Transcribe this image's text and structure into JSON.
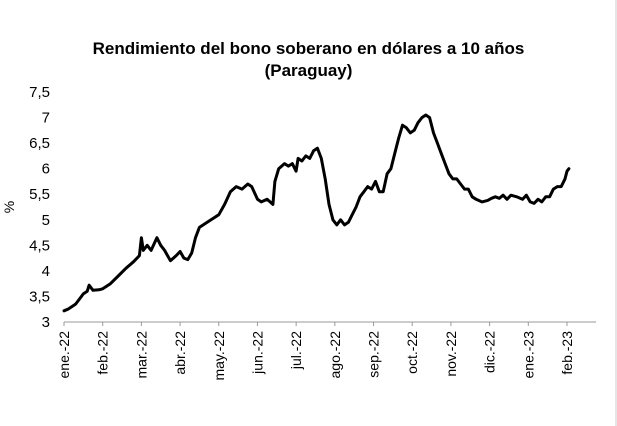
{
  "chart_data": {
    "type": "line",
    "title": "Rendimiento del bono soberano en dólares a 10 años",
    "subtitle": "(Paraguay)",
    "ylabel": "%",
    "xlabel": "",
    "ylim": [
      3,
      7.5
    ],
    "y_ticks": [
      "3",
      "3,5",
      "4",
      "4,5",
      "5",
      "5,5",
      "6",
      "6,5",
      "7",
      "7,5"
    ],
    "x_ticks": [
      "ene.-22",
      "feb.-22",
      "mar.-22",
      "abr.-22",
      "may.-22",
      "jun.-22",
      "jul.-22",
      "ago.-22",
      "sep.-22",
      "oct.-22",
      "nov.-22",
      "dic.-22",
      "ene.-23",
      "feb.-23"
    ],
    "x_range_months": [
      0,
      13.75
    ],
    "grid": false,
    "line_color": "#000000",
    "series": [
      {
        "values": [
          [
            0.0,
            3.22
          ],
          [
            0.1,
            3.25
          ],
          [
            0.2,
            3.3
          ],
          [
            0.3,
            3.35
          ],
          [
            0.4,
            3.45
          ],
          [
            0.5,
            3.55
          ],
          [
            0.6,
            3.6
          ],
          [
            0.65,
            3.72
          ],
          [
            0.75,
            3.62
          ],
          [
            0.9,
            3.63
          ],
          [
            1.0,
            3.65
          ],
          [
            1.2,
            3.75
          ],
          [
            1.4,
            3.9
          ],
          [
            1.6,
            4.05
          ],
          [
            1.8,
            4.18
          ],
          [
            1.95,
            4.3
          ],
          [
            2.0,
            4.65
          ],
          [
            2.05,
            4.4
          ],
          [
            2.15,
            4.5
          ],
          [
            2.25,
            4.4
          ],
          [
            2.4,
            4.65
          ],
          [
            2.5,
            4.5
          ],
          [
            2.6,
            4.4
          ],
          [
            2.75,
            4.2
          ],
          [
            2.9,
            4.3
          ],
          [
            3.0,
            4.38
          ],
          [
            3.1,
            4.25
          ],
          [
            3.2,
            4.22
          ],
          [
            3.3,
            4.35
          ],
          [
            3.4,
            4.65
          ],
          [
            3.5,
            4.85
          ],
          [
            3.7,
            4.95
          ],
          [
            3.9,
            5.05
          ],
          [
            4.0,
            5.1
          ],
          [
            4.15,
            5.3
          ],
          [
            4.3,
            5.55
          ],
          [
            4.45,
            5.65
          ],
          [
            4.6,
            5.6
          ],
          [
            4.75,
            5.7
          ],
          [
            4.85,
            5.65
          ],
          [
            5.0,
            5.4
          ],
          [
            5.1,
            5.35
          ],
          [
            5.25,
            5.4
          ],
          [
            5.4,
            5.3
          ],
          [
            5.45,
            5.75
          ],
          [
            5.55,
            6.0
          ],
          [
            5.7,
            6.1
          ],
          [
            5.8,
            6.05
          ],
          [
            5.9,
            6.1
          ],
          [
            6.0,
            5.95
          ],
          [
            6.05,
            6.2
          ],
          [
            6.15,
            6.15
          ],
          [
            6.25,
            6.25
          ],
          [
            6.35,
            6.2
          ],
          [
            6.45,
            6.35
          ],
          [
            6.55,
            6.4
          ],
          [
            6.65,
            6.2
          ],
          [
            6.75,
            5.8
          ],
          [
            6.85,
            5.3
          ],
          [
            6.95,
            5.0
          ],
          [
            7.05,
            4.9
          ],
          [
            7.15,
            5.0
          ],
          [
            7.25,
            4.9
          ],
          [
            7.35,
            4.95
          ],
          [
            7.45,
            5.1
          ],
          [
            7.55,
            5.25
          ],
          [
            7.65,
            5.45
          ],
          [
            7.75,
            5.55
          ],
          [
            7.85,
            5.65
          ],
          [
            7.95,
            5.6
          ],
          [
            8.05,
            5.75
          ],
          [
            8.15,
            5.55
          ],
          [
            8.25,
            5.55
          ],
          [
            8.35,
            5.9
          ],
          [
            8.45,
            6.0
          ],
          [
            8.55,
            6.3
          ],
          [
            8.65,
            6.6
          ],
          [
            8.75,
            6.85
          ],
          [
            8.85,
            6.8
          ],
          [
            8.95,
            6.7
          ],
          [
            9.05,
            6.75
          ],
          [
            9.15,
            6.9
          ],
          [
            9.25,
            7.0
          ],
          [
            9.35,
            7.05
          ],
          [
            9.45,
            7.0
          ],
          [
            9.55,
            6.7
          ],
          [
            9.65,
            6.5
          ],
          [
            9.75,
            6.3
          ],
          [
            9.85,
            6.1
          ],
          [
            9.95,
            5.9
          ],
          [
            10.05,
            5.8
          ],
          [
            10.15,
            5.8
          ],
          [
            10.25,
            5.7
          ],
          [
            10.35,
            5.6
          ],
          [
            10.45,
            5.6
          ],
          [
            10.55,
            5.45
          ],
          [
            10.65,
            5.4
          ],
          [
            10.8,
            5.35
          ],
          [
            10.95,
            5.38
          ],
          [
            11.05,
            5.42
          ],
          [
            11.15,
            5.45
          ],
          [
            11.25,
            5.42
          ],
          [
            11.35,
            5.48
          ],
          [
            11.45,
            5.4
          ],
          [
            11.55,
            5.48
          ],
          [
            11.7,
            5.45
          ],
          [
            11.85,
            5.4
          ],
          [
            11.95,
            5.48
          ],
          [
            12.05,
            5.35
          ],
          [
            12.15,
            5.32
          ],
          [
            12.25,
            5.4
          ],
          [
            12.35,
            5.35
          ],
          [
            12.45,
            5.45
          ],
          [
            12.55,
            5.45
          ],
          [
            12.65,
            5.6
          ],
          [
            12.75,
            5.65
          ],
          [
            12.85,
            5.65
          ],
          [
            12.95,
            5.8
          ],
          [
            13.0,
            5.95
          ],
          [
            13.05,
            6.0
          ]
        ]
      }
    ]
  }
}
